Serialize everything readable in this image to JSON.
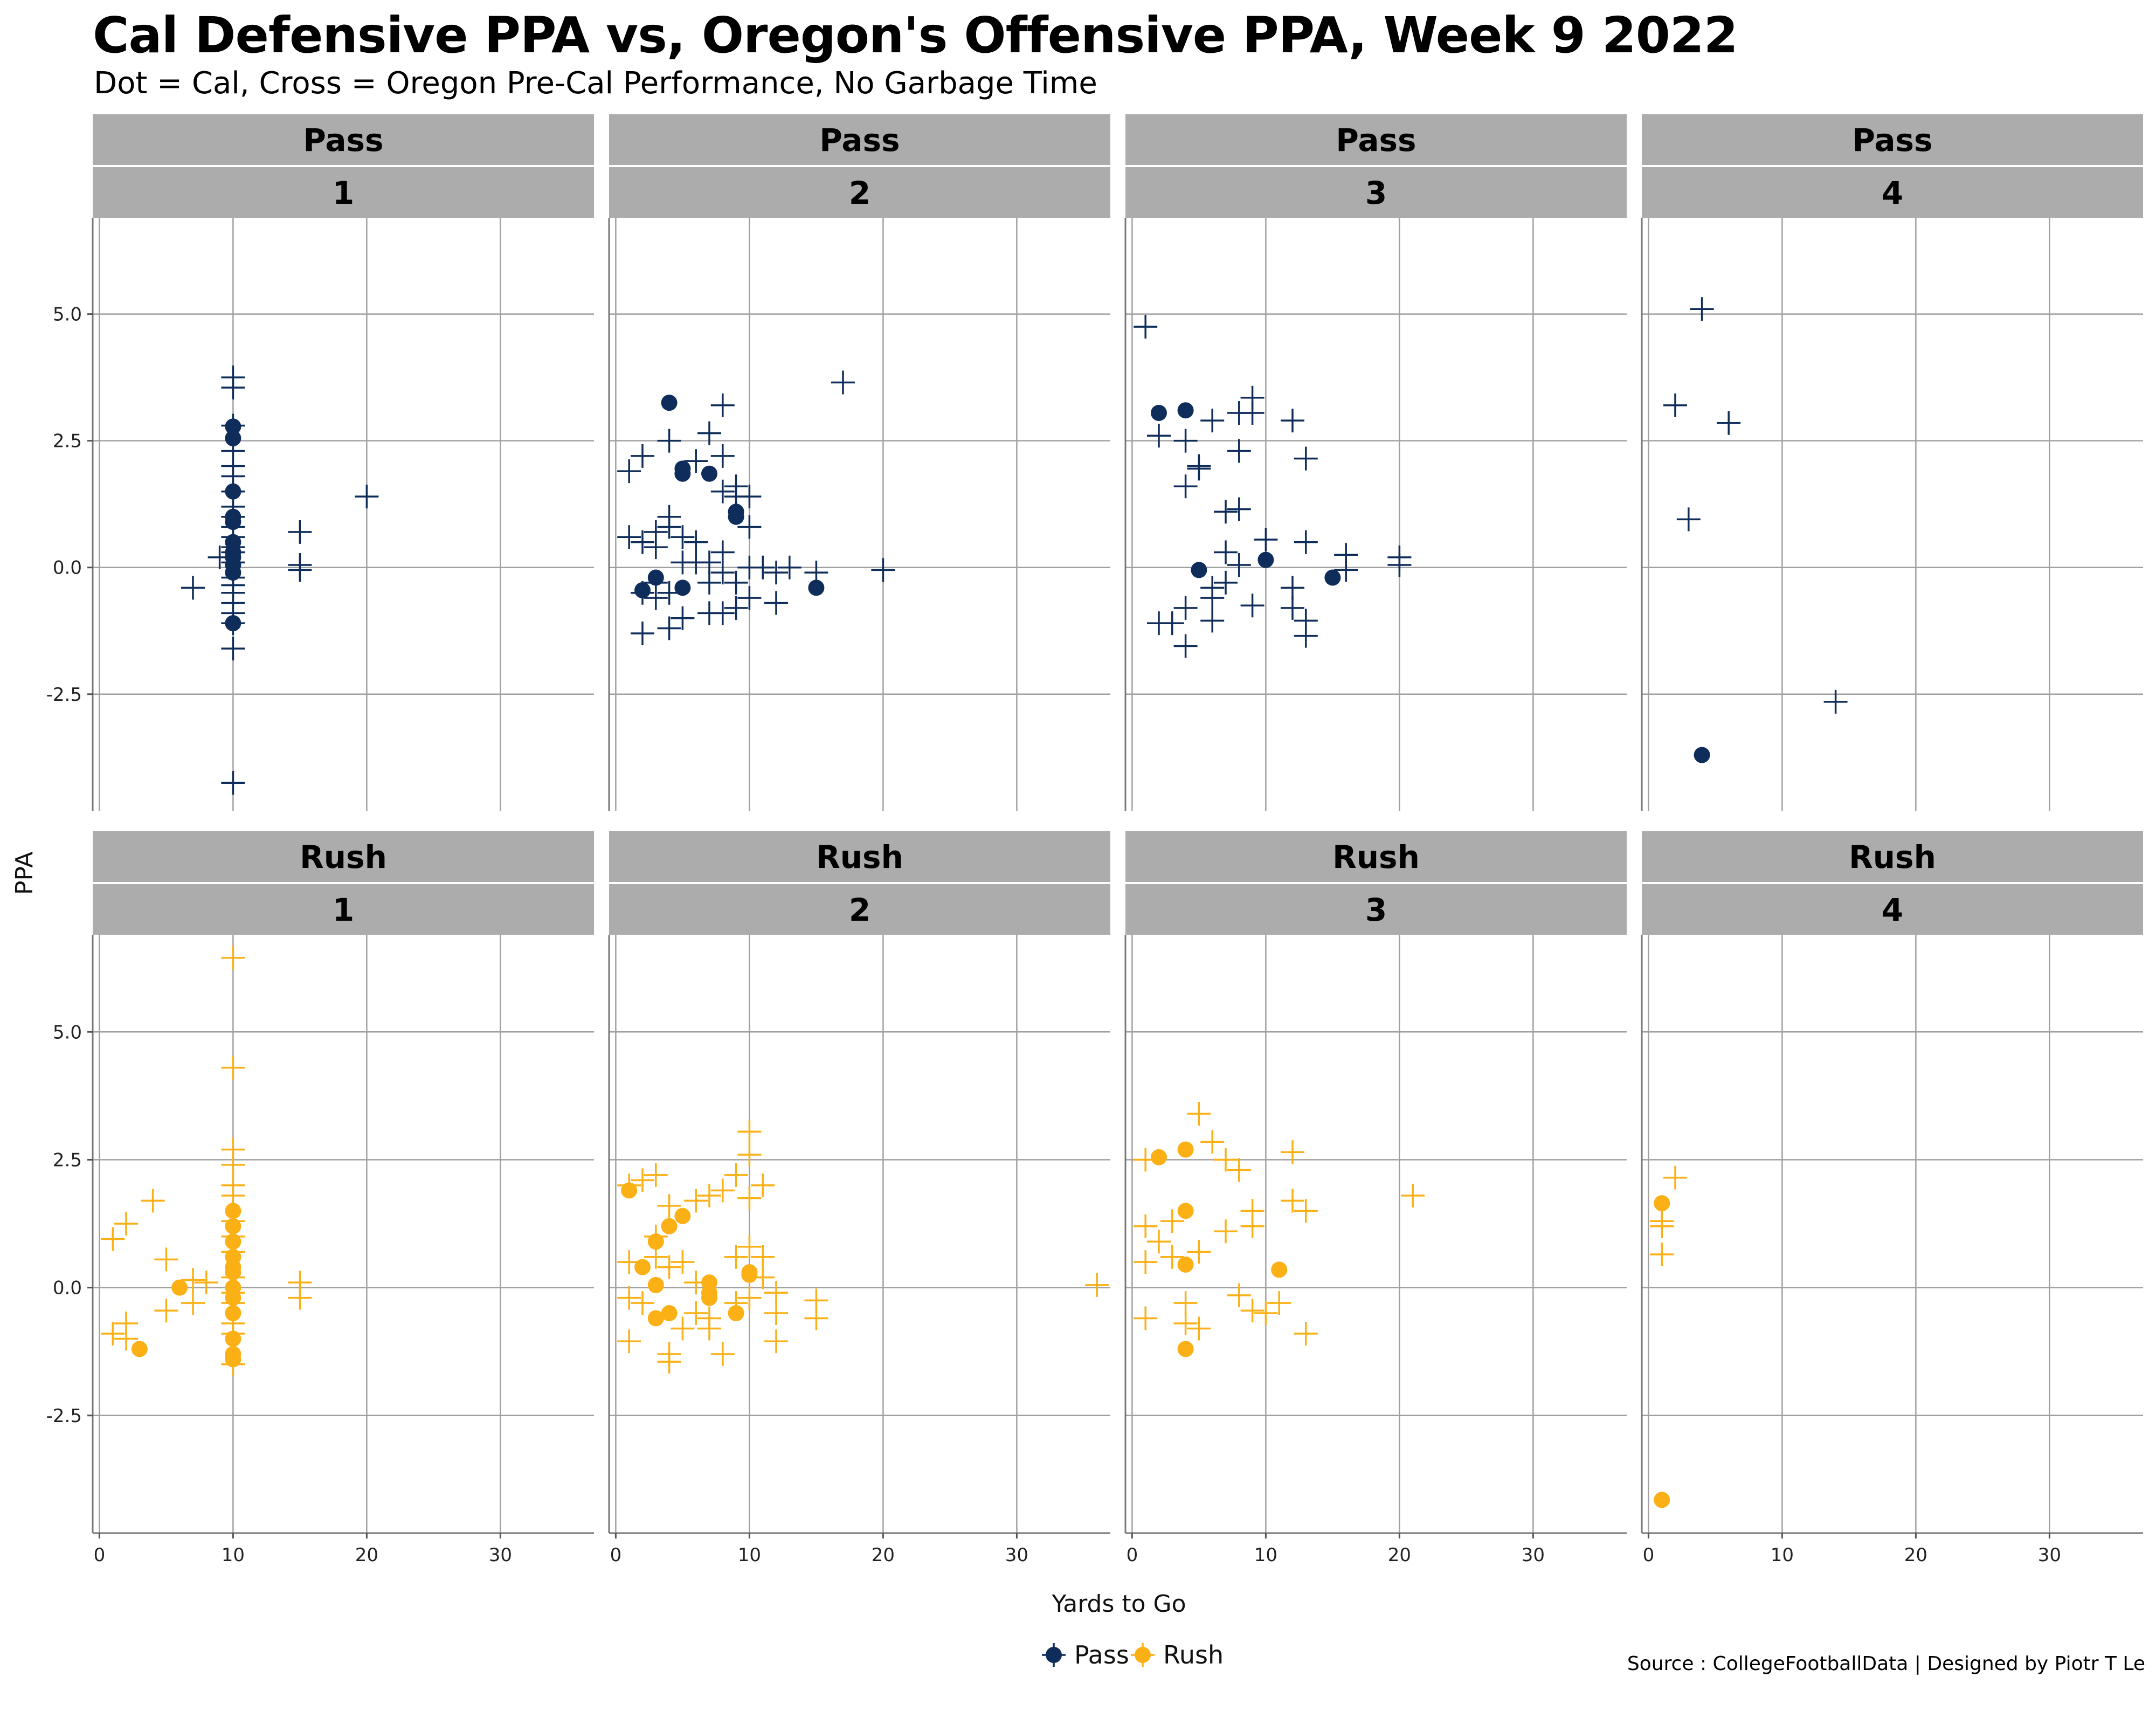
{
  "title": "Cal Defensive PPA vs, Oregon's Offensive PPA, Week 9 2022",
  "subtitle": "Dot = Cal, Cross = Oregon Pre-Cal Performance, No Garbage Time",
  "source": "Source : CollegeFootballData | Designed by Piotr T Le",
  "chart_data": {
    "type": "scatter",
    "facet_rows": [
      "Pass",
      "Rush"
    ],
    "facet_cols": [
      "1",
      "2",
      "3",
      "4"
    ],
    "xlabel": "Yards to Go",
    "ylabel": "PPA",
    "xlim": [
      -0.5,
      37
    ],
    "ylim": [
      -4.8,
      6.9
    ],
    "x_ticks": [
      0,
      10,
      20,
      30
    ],
    "y_ticks": [
      -2.5,
      0,
      2.5,
      5
    ],
    "y_tick_labels": [
      "-2.5",
      "0.0",
      "2.5",
      "5.0"
    ],
    "legend": {
      "position": "bottom",
      "entries": [
        {
          "name": "Pass",
          "color": "#0f2d5a"
        },
        {
          "name": "Rush",
          "color": "#fbb016"
        }
      ]
    },
    "colors": {
      "Pass": "#0f2d5a",
      "Rush": "#fbb016"
    },
    "panels": [
      {
        "play": "Pass",
        "down": "1",
        "cal": [
          [
            10,
            2.78
          ],
          [
            10,
            2.55
          ],
          [
            10,
            1.5
          ],
          [
            10,
            1.0
          ],
          [
            10,
            0.9
          ],
          [
            10,
            0.5
          ],
          [
            10,
            0.3
          ],
          [
            10,
            0.2
          ],
          [
            10,
            0.05
          ],
          [
            10,
            -0.1
          ],
          [
            10,
            -1.1
          ]
        ],
        "oregon": [
          [
            10,
            3.75
          ],
          [
            10,
            3.55
          ],
          [
            10,
            2.8
          ],
          [
            10,
            2.3
          ],
          [
            10,
            2.0
          ],
          [
            10,
            1.8
          ],
          [
            10,
            1.5
          ],
          [
            10,
            1.2
          ],
          [
            10,
            1.0
          ],
          [
            10,
            0.8
          ],
          [
            10,
            0.6
          ],
          [
            10,
            0.4
          ],
          [
            10,
            0.3
          ],
          [
            10,
            0.1
          ],
          [
            9,
            0.2
          ],
          [
            10,
            -0.2
          ],
          [
            10,
            -0.35
          ],
          [
            10,
            -0.5
          ],
          [
            10,
            -0.7
          ],
          [
            10,
            -0.9
          ],
          [
            10,
            -1.1
          ],
          [
            10,
            -1.6
          ],
          [
            10,
            -4.25
          ],
          [
            7,
            -0.4
          ],
          [
            15,
            0.7
          ],
          [
            15,
            0.05
          ],
          [
            15,
            -0.05
          ],
          [
            20,
            1.4
          ]
        ]
      },
      {
        "play": "Pass",
        "down": "2",
        "cal": [
          [
            4,
            3.25
          ],
          [
            5,
            1.95
          ],
          [
            5,
            1.85
          ],
          [
            7,
            1.85
          ],
          [
            9,
            1.1
          ],
          [
            9,
            1.0
          ],
          [
            2,
            -0.45
          ],
          [
            3,
            -0.2
          ],
          [
            5,
            -0.4
          ],
          [
            15,
            -0.4
          ]
        ],
        "oregon": [
          [
            1,
            1.9
          ],
          [
            2,
            2.2
          ],
          [
            1,
            0.6
          ],
          [
            2,
            0.5
          ],
          [
            3,
            0.7
          ],
          [
            3,
            0.4
          ],
          [
            4,
            2.5
          ],
          [
            4,
            1.0
          ],
          [
            4,
            0.8
          ],
          [
            5,
            0.6
          ],
          [
            3,
            -0.3
          ],
          [
            2,
            -0.5
          ],
          [
            3,
            -0.6
          ],
          [
            4,
            -0.5
          ],
          [
            2,
            -1.3
          ],
          [
            4,
            -1.2
          ],
          [
            5,
            -1.0
          ],
          [
            5,
            0.1
          ],
          [
            6,
            2.1
          ],
          [
            6,
            0.5
          ],
          [
            6,
            0.1
          ],
          [
            7,
            2.65
          ],
          [
            7,
            -0.9
          ],
          [
            8,
            3.2
          ],
          [
            8,
            2.2
          ],
          [
            8,
            1.5
          ],
          [
            8,
            0.3
          ],
          [
            8,
            -0.1
          ],
          [
            8,
            -0.9
          ],
          [
            7,
            0.1
          ],
          [
            7,
            -0.3
          ],
          [
            9,
            1.6
          ],
          [
            9,
            1.4
          ],
          [
            9,
            -0.3
          ],
          [
            9,
            -0.8
          ],
          [
            10,
            1.4
          ],
          [
            10,
            0.8
          ],
          [
            10,
            0.0
          ],
          [
            10,
            -0.6
          ],
          [
            11,
            0.0
          ],
          [
            12,
            -0.1
          ],
          [
            12,
            -0.7
          ],
          [
            13,
            0.0
          ],
          [
            15,
            -0.1
          ],
          [
            17,
            3.65
          ],
          [
            20,
            -0.05
          ]
        ]
      },
      {
        "play": "Pass",
        "down": "3",
        "cal": [
          [
            2,
            3.05
          ],
          [
            4,
            3.1
          ],
          [
            5,
            -0.05
          ],
          [
            10,
            0.15
          ],
          [
            15,
            -0.2
          ]
        ],
        "oregon": [
          [
            1,
            4.75
          ],
          [
            2,
            2.6
          ],
          [
            2,
            -1.1
          ],
          [
            3,
            -1.1
          ],
          [
            4,
            2.5
          ],
          [
            4,
            1.6
          ],
          [
            4,
            -0.8
          ],
          [
            4,
            -1.55
          ],
          [
            5,
            2.0
          ],
          [
            5,
            1.95
          ],
          [
            6,
            2.9
          ],
          [
            6,
            -0.4
          ],
          [
            6,
            -0.6
          ],
          [
            6,
            -1.05
          ],
          [
            7,
            1.1
          ],
          [
            7,
            0.3
          ],
          [
            7,
            -0.3
          ],
          [
            8,
            3.05
          ],
          [
            8,
            2.3
          ],
          [
            8,
            1.15
          ],
          [
            8,
            0.05
          ],
          [
            9,
            3.35
          ],
          [
            9,
            3.05
          ],
          [
            9,
            -0.75
          ],
          [
            10,
            0.55
          ],
          [
            12,
            2.9
          ],
          [
            12,
            -0.4
          ],
          [
            12,
            -0.8
          ],
          [
            13,
            2.15
          ],
          [
            13,
            0.5
          ],
          [
            13,
            -1.05
          ],
          [
            13,
            -1.35
          ],
          [
            16,
            0.25
          ],
          [
            16,
            -0.05
          ],
          [
            20,
            0.2
          ],
          [
            20,
            0.05
          ]
        ]
      },
      {
        "play": "Pass",
        "down": "4",
        "cal": [
          [
            4,
            -3.7
          ]
        ],
        "oregon": [
          [
            2,
            3.2
          ],
          [
            3,
            0.95
          ],
          [
            4,
            5.1
          ],
          [
            6,
            2.85
          ],
          [
            14,
            -2.65
          ]
        ]
      },
      {
        "play": "Rush",
        "down": "1",
        "cal": [
          [
            10,
            1.5
          ],
          [
            10,
            1.2
          ],
          [
            10,
            0.9
          ],
          [
            10,
            0.6
          ],
          [
            10,
            0.4
          ],
          [
            10,
            0.3
          ],
          [
            10,
            0.0
          ],
          [
            10,
            -0.2
          ],
          [
            10,
            -0.5
          ],
          [
            10,
            -1.0
          ],
          [
            10,
            -1.3
          ],
          [
            10,
            -1.4
          ],
          [
            6,
            0.0
          ],
          [
            3,
            -1.2
          ]
        ],
        "oregon": [
          [
            10,
            6.45
          ],
          [
            10,
            4.3
          ],
          [
            10,
            2.7
          ],
          [
            10,
            2.4
          ],
          [
            10,
            2.0
          ],
          [
            10,
            1.8
          ],
          [
            10,
            1.3
          ],
          [
            10,
            1.0
          ],
          [
            10,
            0.7
          ],
          [
            10,
            0.2
          ],
          [
            10,
            -0.1
          ],
          [
            10,
            -0.3
          ],
          [
            10,
            -0.7
          ],
          [
            10,
            -0.9
          ],
          [
            10,
            -1.5
          ],
          [
            1,
            0.95
          ],
          [
            2,
            1.25
          ],
          [
            1,
            -0.9
          ],
          [
            2,
            -0.7
          ],
          [
            2,
            -1.0
          ],
          [
            4,
            1.7
          ],
          [
            5,
            0.55
          ],
          [
            5,
            -0.45
          ],
          [
            7,
            0.15
          ],
          [
            8,
            0.1
          ],
          [
            7,
            -0.3
          ],
          [
            15,
            0.1
          ],
          [
            15,
            -0.2
          ]
        ]
      },
      {
        "play": "Rush",
        "down": "2",
        "cal": [
          [
            1,
            1.9
          ],
          [
            2,
            0.4
          ],
          [
            3,
            0.9
          ],
          [
            3,
            0.05
          ],
          [
            3,
            -0.6
          ],
          [
            4,
            1.2
          ],
          [
            4,
            -0.5
          ],
          [
            5,
            1.4
          ],
          [
            7,
            0.1
          ],
          [
            7,
            -0.1
          ],
          [
            7,
            -0.2
          ],
          [
            9,
            -0.5
          ],
          [
            10,
            0.3
          ],
          [
            10,
            0.25
          ]
        ],
        "oregon": [
          [
            1,
            2.0
          ],
          [
            2,
            2.1
          ],
          [
            3,
            2.2
          ],
          [
            1,
            0.5
          ],
          [
            1,
            -0.2
          ],
          [
            1,
            -1.05
          ],
          [
            2,
            -0.3
          ],
          [
            3,
            1.0
          ],
          [
            3,
            0.6
          ],
          [
            4,
            1.6
          ],
          [
            4,
            0.4
          ],
          [
            4,
            -1.3
          ],
          [
            4,
            -1.45
          ],
          [
            5,
            0.5
          ],
          [
            5,
            -0.8
          ],
          [
            6,
            1.7
          ],
          [
            6,
            0.1
          ],
          [
            6,
            -0.5
          ],
          [
            7,
            1.8
          ],
          [
            7,
            -0.6
          ],
          [
            7,
            -0.8
          ],
          [
            8,
            1.9
          ],
          [
            8,
            -1.3
          ],
          [
            9,
            2.2
          ],
          [
            9,
            0.6
          ],
          [
            9,
            -0.3
          ],
          [
            10,
            3.05
          ],
          [
            10,
            2.6
          ],
          [
            10,
            1.75
          ],
          [
            10,
            0.8
          ],
          [
            10,
            -0.2
          ],
          [
            11,
            2.0
          ],
          [
            11,
            0.6
          ],
          [
            11,
            0.2
          ],
          [
            12,
            -0.1
          ],
          [
            12,
            -0.5
          ],
          [
            12,
            -1.05
          ],
          [
            15,
            -0.25
          ],
          [
            15,
            -0.6
          ],
          [
            36,
            0.05
          ]
        ]
      },
      {
        "play": "Rush",
        "down": "3",
        "cal": [
          [
            2,
            2.55
          ],
          [
            4,
            2.7
          ],
          [
            4,
            1.5
          ],
          [
            4,
            0.45
          ],
          [
            4,
            -1.2
          ],
          [
            11,
            0.35
          ]
        ],
        "oregon": [
          [
            1,
            2.5
          ],
          [
            1,
            1.2
          ],
          [
            1,
            0.5
          ],
          [
            1,
            -0.6
          ],
          [
            2,
            0.9
          ],
          [
            3,
            1.3
          ],
          [
            3,
            0.6
          ],
          [
            4,
            -0.3
          ],
          [
            4,
            -0.7
          ],
          [
            5,
            3.4
          ],
          [
            5,
            0.7
          ],
          [
            5,
            -0.8
          ],
          [
            6,
            2.85
          ],
          [
            7,
            1.1
          ],
          [
            7,
            2.5
          ],
          [
            8,
            2.3
          ],
          [
            8,
            -0.15
          ],
          [
            9,
            1.5
          ],
          [
            9,
            1.2
          ],
          [
            9,
            -0.45
          ],
          [
            10,
            -0.5
          ],
          [
            11,
            -0.3
          ],
          [
            12,
            2.65
          ],
          [
            12,
            1.7
          ],
          [
            13,
            1.5
          ],
          [
            13,
            -0.9
          ],
          [
            21,
            1.8
          ]
        ]
      },
      {
        "play": "Rush",
        "down": "4",
        "cal": [
          [
            1,
            1.65
          ],
          [
            1,
            -4.15
          ]
        ],
        "oregon": [
          [
            2,
            2.15
          ],
          [
            1,
            1.3
          ],
          [
            1,
            1.2
          ],
          [
            1,
            0.65
          ]
        ]
      }
    ]
  }
}
